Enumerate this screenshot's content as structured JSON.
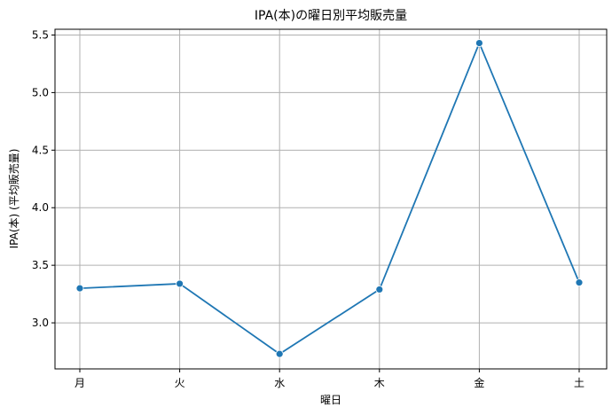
{
  "chart_data": {
    "type": "line",
    "title": "IPA(本)の曜日別平均販売量",
    "xlabel": "曜日",
    "ylabel": "IPA(本) (平均販売量)",
    "categories": [
      "月",
      "火",
      "水",
      "木",
      "金",
      "土"
    ],
    "series": [
      {
        "values": [
          3.3,
          3.34,
          2.73,
          3.29,
          5.43,
          3.35
        ]
      }
    ],
    "yticks": [
      "3.0",
      "3.5",
      "4.0",
      "4.5",
      "5.0",
      "5.5"
    ],
    "ylim": [
      2.6,
      5.55
    ],
    "grid": true,
    "line_color": "#1f77b4"
  }
}
